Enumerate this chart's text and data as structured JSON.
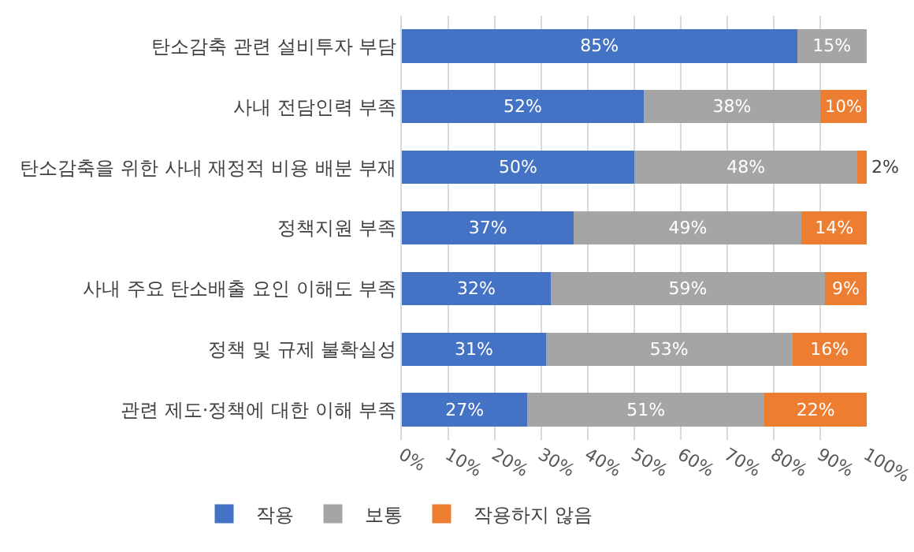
{
  "chart_data": {
    "type": "bar",
    "orientation": "horizontal",
    "stacked": true,
    "categories": [
      "탄소감축 관련 설비투자 부담",
      "사내 전담인력 부족",
      "탄소감축을 위한 사내 재정적 비용 배분 부재",
      "정책지원 부족",
      "사내 주요 탄소배출 요인 이해도 부족",
      "정책 및 규제 불확실성",
      "관련 제도·정책에 대한 이해 부족"
    ],
    "series": [
      {
        "name": "작용",
        "color": "#4472c4",
        "values": [
          85,
          52,
          50,
          37,
          32,
          31,
          27
        ],
        "value_labels": [
          "85%",
          "52%",
          "50%",
          "37%",
          "32%",
          "31%",
          "27%"
        ]
      },
      {
        "name": "보통",
        "color": "#a5a5a5",
        "values": [
          15,
          38,
          48,
          49,
          59,
          53,
          51
        ],
        "value_labels": [
          "15%",
          "38%",
          "48%",
          "49%",
          "59%",
          "53%",
          "51%"
        ]
      },
      {
        "name": "작용하지 않음",
        "color": "#ed7d31",
        "values": [
          0,
          10,
          2,
          14,
          9,
          16,
          22
        ],
        "value_labels": [
          null,
          "10%",
          "2%",
          "14%",
          "9%",
          "16%",
          "22%"
        ]
      }
    ],
    "xlim": [
      0,
      100
    ],
    "xticks": [
      {
        "value": 0,
        "label": "0%"
      },
      {
        "value": 10,
        "label": "10%"
      },
      {
        "value": 20,
        "label": "20%"
      },
      {
        "value": 30,
        "label": "30%"
      },
      {
        "value": 40,
        "label": "40%"
      },
      {
        "value": 50,
        "label": "50%"
      },
      {
        "value": 60,
        "label": "60%"
      },
      {
        "value": 70,
        "label": "70%"
      },
      {
        "value": 80,
        "label": "80%"
      },
      {
        "value": 90,
        "label": "90%"
      },
      {
        "value": 100,
        "label": "100%"
      }
    ],
    "grid": "x",
    "legend": "bottom left"
  }
}
